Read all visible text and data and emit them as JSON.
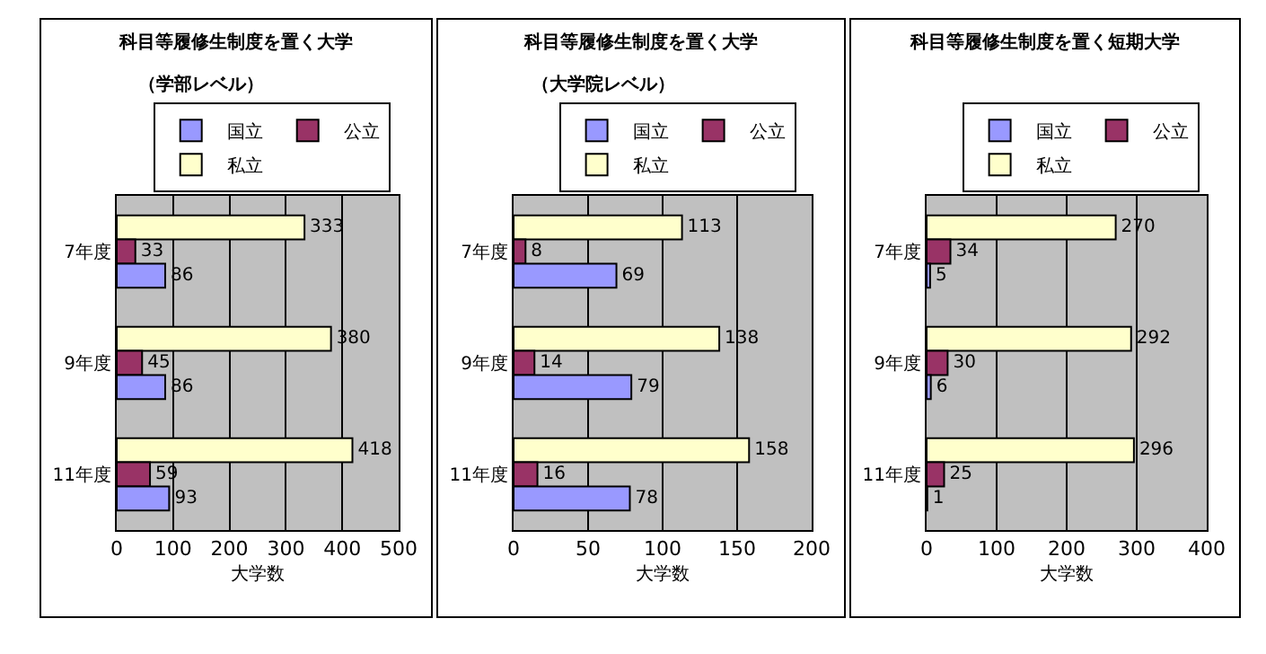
{
  "chart_data": [
    {
      "type": "bar",
      "orientation": "horizontal",
      "title": "科目等履修生制度を置く大学",
      "subtitle": "（学部レベル）",
      "xlabel": "大学数",
      "categories": [
        "7年度",
        "9年度",
        "11年度"
      ],
      "series": [
        {
          "name": "国立",
          "color": "#9999ff",
          "values": [
            86,
            86,
            93
          ]
        },
        {
          "name": "公立",
          "color": "#993366",
          "values": [
            33,
            45,
            59
          ]
        },
        {
          "name": "私立",
          "color": "#ffffcc",
          "values": [
            333,
            380,
            418
          ]
        }
      ],
      "xlim": [
        0,
        500
      ],
      "xticks": [
        0,
        100,
        200,
        300,
        400,
        500
      ],
      "grid": "x",
      "legend": "top right",
      "data_labels": true
    },
    {
      "type": "bar",
      "orientation": "horizontal",
      "title": "科目等履修生制度を置く大学",
      "subtitle": "（大学院レベル）",
      "xlabel": "大学数",
      "categories": [
        "7年度",
        "9年度",
        "11年度"
      ],
      "series": [
        {
          "name": "国立",
          "color": "#9999ff",
          "values": [
            69,
            79,
            78
          ]
        },
        {
          "name": "公立",
          "color": "#993366",
          "values": [
            8,
            14,
            16
          ]
        },
        {
          "name": "私立",
          "color": "#ffffcc",
          "values": [
            113,
            138,
            158
          ]
        }
      ],
      "xlim": [
        0,
        200
      ],
      "xticks": [
        0,
        50,
        100,
        150,
        200
      ],
      "grid": "x",
      "legend": "top right",
      "data_labels": true
    },
    {
      "type": "bar",
      "orientation": "horizontal",
      "title": "科目等履修生制度を置く短期大学",
      "xlabel": "大学数",
      "categories": [
        "7年度",
        "9年度",
        "11年度"
      ],
      "series": [
        {
          "name": "国立",
          "color": "#9999ff",
          "values": [
            5,
            6,
            1
          ]
        },
        {
          "name": "公立",
          "color": "#993366",
          "values": [
            34,
            30,
            25
          ]
        },
        {
          "name": "私立",
          "color": "#ffffcc",
          "values": [
            270,
            292,
            296
          ]
        }
      ],
      "xlim": [
        0,
        400
      ],
      "xticks": [
        0,
        100,
        200,
        300,
        400
      ],
      "grid": "x",
      "legend": "top right",
      "data_labels": true
    }
  ]
}
